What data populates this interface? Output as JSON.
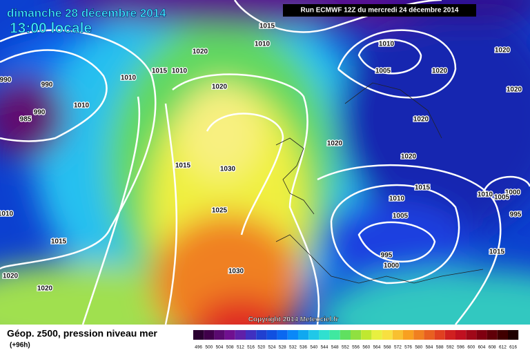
{
  "header": {
    "date": "dimanche 28 décembre 2014",
    "time": "13:00 locale",
    "run": "Run ECMWF 12Z du mercredi 24 décembre 2014"
  },
  "isobar_labels": [
    "1015",
    "1010",
    "1020",
    "1010",
    "1005",
    "1020",
    "1020",
    "1020",
    "1010",
    "1015",
    "1010",
    "990",
    "990",
    "985",
    "990",
    "1020",
    "1020",
    "1020",
    "1020",
    "1015",
    "1030",
    "1015",
    "1010",
    "1010",
    "1000",
    "1005",
    "995",
    "1005",
    "1025",
    "1015",
    "1015",
    "995",
    "1000",
    "1020",
    "1020",
    "1030",
    "1010",
    "1010"
  ],
  "copyright": "Copyright 2014 Meteociel.fr",
  "footer": {
    "title": "Géop. z500, pression niveau mer",
    "lead": "(+96h)"
  },
  "legend": {
    "labels": [
      "496",
      "500",
      "504",
      "508",
      "512",
      "516",
      "520",
      "524",
      "528",
      "532",
      "536",
      "540",
      "544",
      "548",
      "552",
      "556",
      "560",
      "564",
      "568",
      "572",
      "576",
      "580",
      "584",
      "588",
      "592",
      "596",
      "600",
      "604",
      "608",
      "612",
      "616"
    ],
    "colors": [
      "#2a0030",
      "#40004a",
      "#5a0a70",
      "#701090",
      "#6020a8",
      "#4030c0",
      "#2040d0",
      "#1050e0",
      "#0a68f0",
      "#0a88f8",
      "#10a8f0",
      "#20c8e8",
      "#30e0d0",
      "#40e8a0",
      "#60e060",
      "#90e040",
      "#c0e830",
      "#e8f040",
      "#f8e040",
      "#f8c030",
      "#f8a020",
      "#f08020",
      "#e86020",
      "#e04020",
      "#d02020",
      "#c01020",
      "#a00818",
      "#800010",
      "#600008",
      "#400000",
      "#200000"
    ]
  }
}
